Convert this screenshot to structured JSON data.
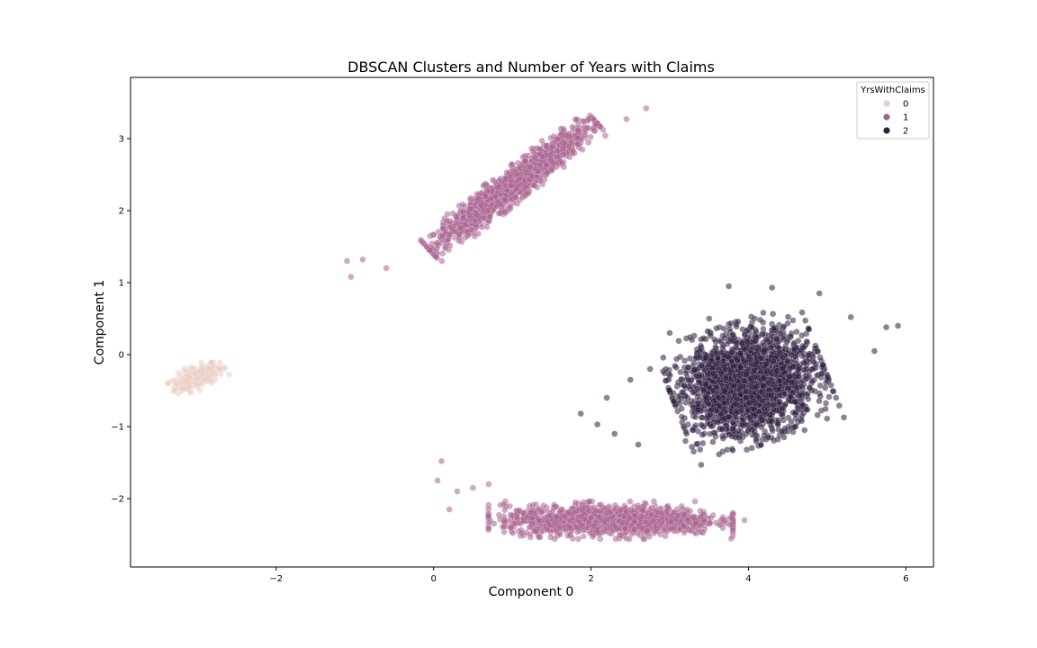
{
  "chart_data": {
    "type": "scatter",
    "title": "DBSCAN Clusters and Number of Years with Claims",
    "xlabel": "Component 0",
    "ylabel": "Component 1",
    "xlim": [
      -3.85,
      6.35
    ],
    "ylim": [
      -2.95,
      3.85
    ],
    "xticks": [
      -2,
      0,
      2,
      4,
      6
    ],
    "xtick_labels": [
      "−2",
      "0",
      "2",
      "4",
      "6"
    ],
    "yticks": [
      -2,
      -1,
      0,
      1,
      2,
      3
    ],
    "ytick_labels": [
      "−2",
      "−1",
      "0",
      "1",
      "2",
      "3"
    ],
    "grid": false,
    "legend": {
      "title": "YrsWithClaims",
      "placement": "top-right",
      "entries": [
        {
          "label": "0",
          "color": "#ebcdc5"
        },
        {
          "label": "1",
          "color": "#a9628f"
        },
        {
          "label": "2",
          "color": "#2d1e3e"
        }
      ]
    },
    "series": [
      {
        "name": "0",
        "color": "#ebcdc5",
        "clusters": [
          {
            "center": [
              -3.0,
              -0.31
            ],
            "spread_along": 0.33,
            "spread_across": 0.07,
            "angle_deg": 25,
            "points": 220
          }
        ]
      },
      {
        "name": "1",
        "color": "#a9628f",
        "clusters": [
          {
            "center": [
              1.0,
              2.35
            ],
            "spread_along": 1.2,
            "spread_across": 0.09,
            "angle_deg": 40,
            "points": 1500
          },
          {
            "center": [
              2.25,
              -2.3
            ],
            "spread_along": 1.35,
            "spread_across": 0.1,
            "angle_deg": 0,
            "points": 1300
          }
        ],
        "outliers": [
          [
            -1.05,
            1.08
          ],
          [
            -1.1,
            1.3
          ],
          [
            -0.9,
            1.32
          ],
          [
            0.05,
            -1.75
          ],
          [
            0.1,
            -1.48
          ],
          [
            0.3,
            -1.9
          ],
          [
            0.5,
            -1.85
          ],
          [
            0.7,
            -1.8
          ],
          [
            2.7,
            3.42
          ],
          [
            2.45,
            3.27
          ],
          [
            -0.6,
            1.2
          ],
          [
            3.95,
            -2.3
          ],
          [
            0.2,
            -2.15
          ]
        ]
      },
      {
        "name": "2",
        "color": "#2d1e3e",
        "clusters": [
          {
            "center": [
              4.0,
              -0.4
            ],
            "spread_along": 0.85,
            "spread_across": 0.33,
            "angle_deg": 20,
            "points": 2200
          }
        ],
        "outliers": [
          [
            1.87,
            -0.82
          ],
          [
            2.08,
            -0.97
          ],
          [
            2.2,
            -0.6
          ],
          [
            2.3,
            -1.1
          ],
          [
            5.9,
            0.4
          ],
          [
            5.75,
            0.38
          ],
          [
            5.6,
            0.05
          ],
          [
            5.3,
            0.52
          ],
          [
            3.75,
            0.95
          ],
          [
            4.3,
            0.93
          ],
          [
            4.9,
            0.85
          ],
          [
            3.5,
            0.5
          ],
          [
            3.0,
            0.3
          ],
          [
            2.5,
            -0.35
          ],
          [
            2.6,
            -1.25
          ],
          [
            3.8,
            -1.33
          ],
          [
            3.2,
            -1.2
          ],
          [
            2.75,
            -0.2
          ],
          [
            4.25,
            -1.15
          ],
          [
            4.6,
            -1.0
          ]
        ]
      }
    ]
  }
}
